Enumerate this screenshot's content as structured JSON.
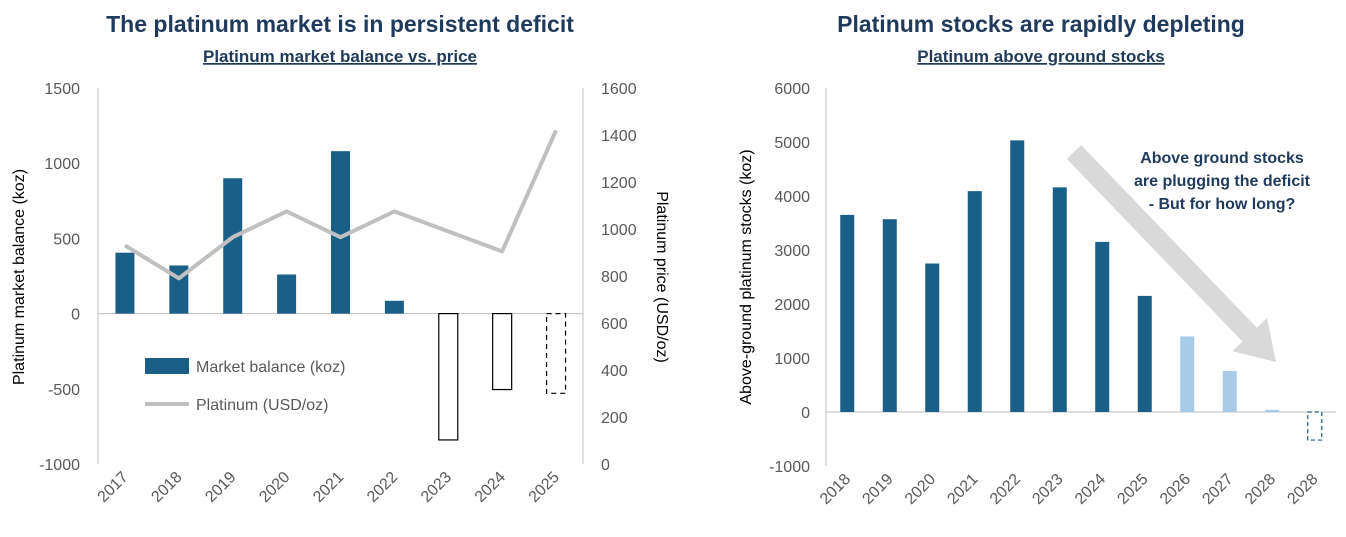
{
  "colors": {
    "bar": "#1a5f85",
    "bar_light": "#a8cbe8",
    "line": "#c0c0c0",
    "axis": "#bfbfbf",
    "arrow": "#d9d9d9",
    "title": "#1f3a5a"
  },
  "chart_data": [
    {
      "type": "bar",
      "title": "The platinum market is in persistent deficit",
      "subtitle": "Platinum market balance vs. price",
      "categories": [
        "2017",
        "2018",
        "2019",
        "2020",
        "2021",
        "2022",
        "2023",
        "2024",
        "2025"
      ],
      "series": [
        {
          "name": "Market balance (koz)",
          "type": "bar",
          "axis": "left",
          "values": [
            405,
            320,
            900,
            260,
            1080,
            85,
            -840,
            -505,
            -530
          ],
          "styles": [
            "solid",
            "solid",
            "solid",
            "solid",
            "solid",
            "solid",
            "outline",
            "outline",
            "dashed"
          ]
        },
        {
          "name": "Platinum (USD/oz)",
          "type": "line",
          "axis": "right",
          "values": [
            930,
            790,
            965,
            1075,
            965,
            1075,
            990,
            905,
            1420
          ]
        }
      ],
      "ylabel": "Platinum market balance (koz)",
      "y2label": "Platinum price (USD/oz)",
      "ylim": [
        -1000,
        1500
      ],
      "yticks": [
        "1500",
        "1000",
        "500",
        "0",
        "-500",
        "-1000"
      ],
      "y2lim": [
        0,
        1600
      ],
      "y2ticks": [
        "1600",
        "1400",
        "1200",
        "1000",
        "800",
        "600",
        "400",
        "200",
        "0"
      ],
      "legend": "inside-bottom-left",
      "grid": false
    },
    {
      "type": "bar",
      "title": "Platinum stocks are rapidly depleting",
      "subtitle": "Platinum above ground stocks",
      "categories": [
        "2018",
        "2019",
        "2020",
        "2021",
        "2022",
        "2023",
        "2024",
        "2025",
        "2026",
        "2027",
        "2028",
        "2028"
      ],
      "values": [
        3650,
        3570,
        2750,
        4090,
        5030,
        4160,
        3150,
        2150,
        1400,
        760,
        40,
        -520
      ],
      "styles": [
        "actual",
        "actual",
        "actual",
        "actual",
        "actual",
        "actual",
        "actual",
        "actual",
        "forecast",
        "forecast",
        "forecast",
        "dashed"
      ],
      "ylabel": "Above-ground platinum stocks (koz)",
      "ylim": [
        -1000,
        6000
      ],
      "yticks": [
        "6000",
        "5000",
        "4000",
        "3000",
        "2000",
        "1000",
        "0",
        "-1000"
      ],
      "annotation": [
        "Above ground stocks",
        "are plugging the deficit",
        " - But for how long?"
      ],
      "grid": false
    }
  ]
}
